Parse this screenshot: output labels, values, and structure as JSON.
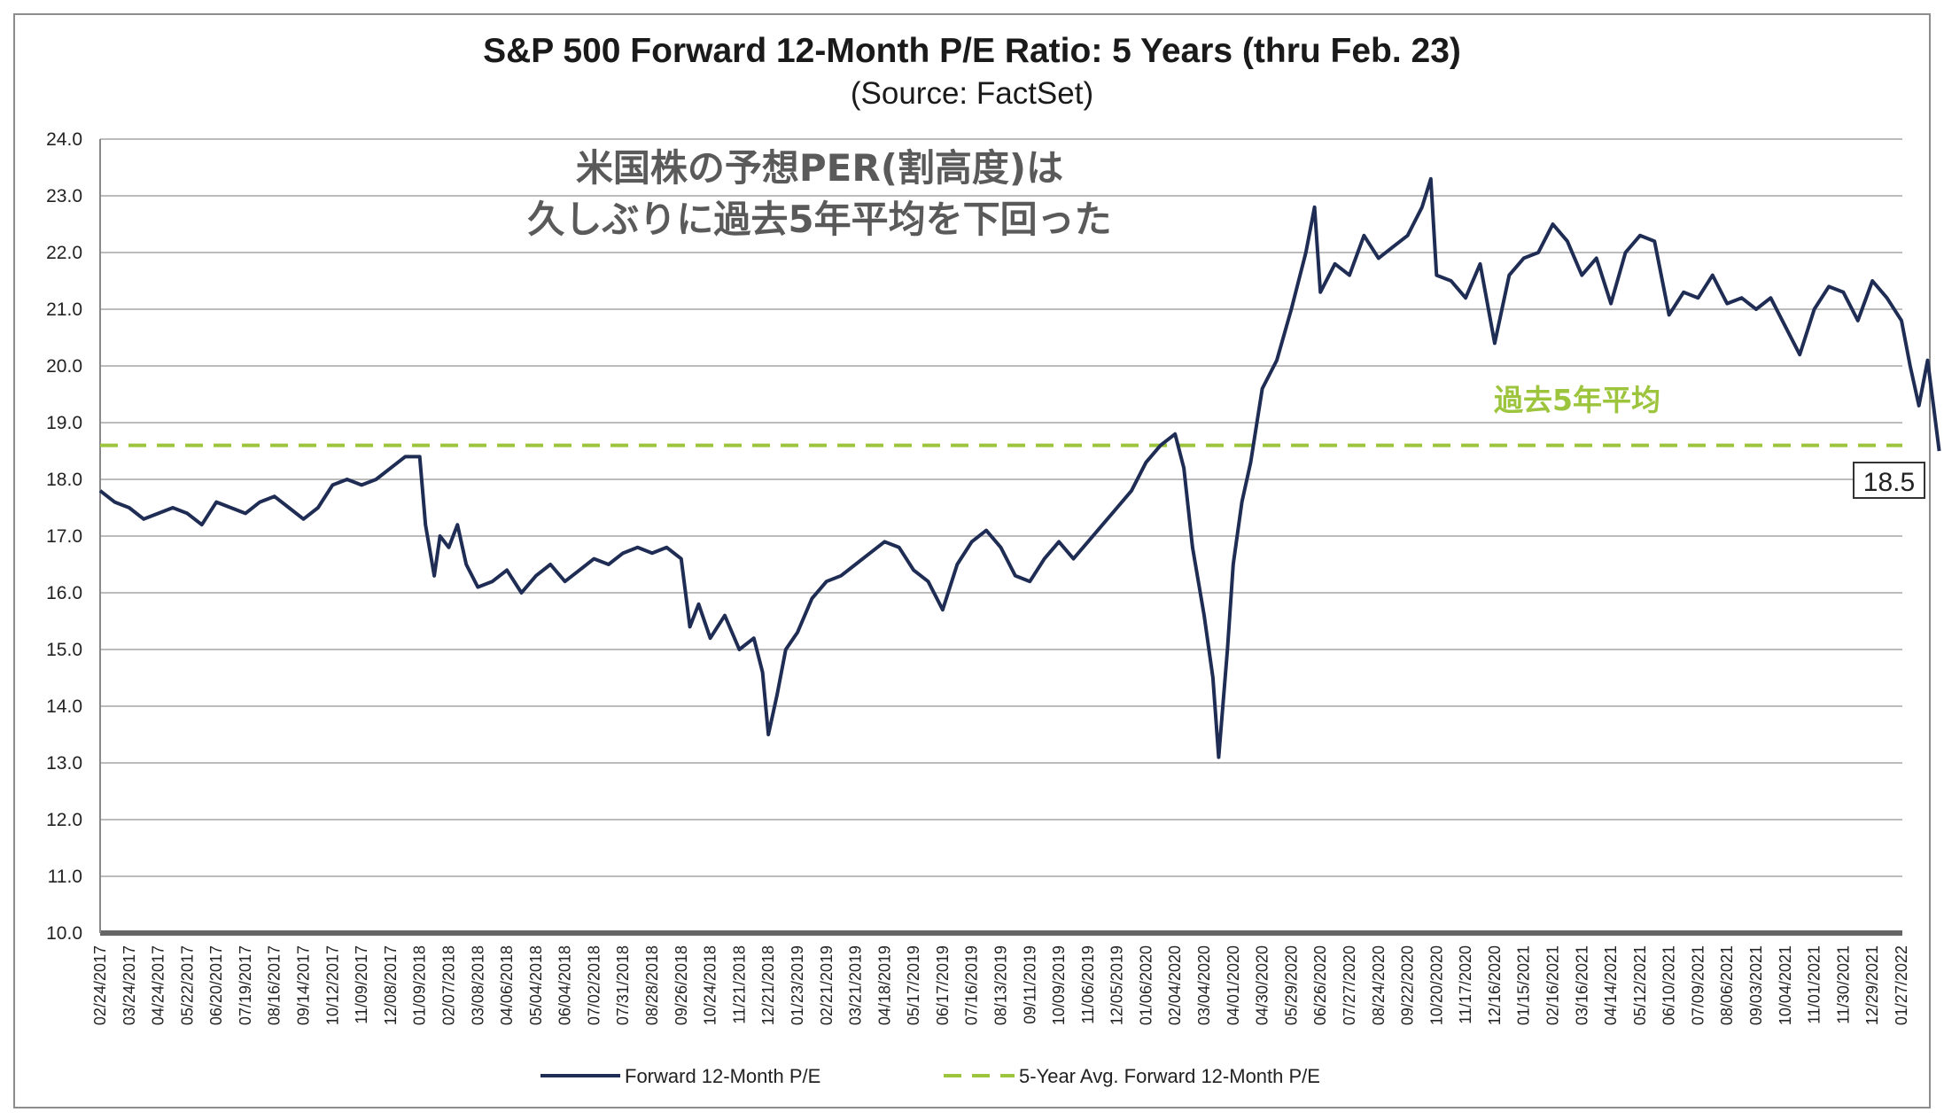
{
  "chart_data": {
    "type": "line",
    "title": "S&P 500 Forward 12-Month P/E Ratio: 5 Years (thru Feb. 23)",
    "subtitle": "(Source: FactSet)",
    "ylim": [
      10.0,
      24.0
    ],
    "yticks": [
      "24.0",
      "23.0",
      "22.0",
      "21.0",
      "20.0",
      "19.0",
      "18.0",
      "17.0",
      "16.0",
      "15.0",
      "14.0",
      "13.0",
      "12.0",
      "11.0",
      "10.0"
    ],
    "xticks": [
      "02/24/2017",
      "03/24/2017",
      "04/24/2017",
      "05/22/2017",
      "06/20/2017",
      "07/19/2017",
      "08/16/2017",
      "09/14/2017",
      "10/12/2017",
      "11/09/2017",
      "12/08/2017",
      "01/09/2018",
      "02/07/2018",
      "03/08/2018",
      "04/06/2018",
      "05/04/2018",
      "06/04/2018",
      "07/02/2018",
      "07/31/2018",
      "08/28/2018",
      "09/26/2018",
      "10/24/2018",
      "11/21/2018",
      "12/21/2018",
      "01/23/2019",
      "02/21/2019",
      "03/21/2019",
      "04/18/2019",
      "05/17/2019",
      "06/17/2019",
      "07/16/2019",
      "08/13/2019",
      "09/11/2019",
      "10/09/2019",
      "11/06/2019",
      "12/05/2019",
      "01/06/2020",
      "02/04/2020",
      "03/04/2020",
      "04/01/2020",
      "04/30/2020",
      "05/29/2020",
      "06/26/2020",
      "07/27/2020",
      "08/24/2020",
      "09/22/2020",
      "10/20/2020",
      "11/17/2020",
      "12/16/2020",
      "01/15/2021",
      "02/16/2021",
      "03/16/2021",
      "04/14/2021",
      "05/12/2021",
      "06/10/2021",
      "07/09/2021",
      "08/06/2021",
      "09/03/2021",
      "10/04/2021",
      "11/01/2021",
      "11/30/2021",
      "12/29/2021",
      "01/27/2022"
    ],
    "grid": true,
    "legend_position": "bottom-center",
    "series": [
      {
        "name": "Forward 12-Month P/E",
        "color": "#1f2d55",
        "points": [
          [
            0,
            17.8
          ],
          [
            0.5,
            17.6
          ],
          [
            1,
            17.5
          ],
          [
            1.5,
            17.3
          ],
          [
            2,
            17.4
          ],
          [
            2.5,
            17.5
          ],
          [
            3,
            17.4
          ],
          [
            3.5,
            17.2
          ],
          [
            4,
            17.6
          ],
          [
            4.5,
            17.5
          ],
          [
            5,
            17.4
          ],
          [
            5.5,
            17.6
          ],
          [
            6,
            17.7
          ],
          [
            6.5,
            17.5
          ],
          [
            7,
            17.3
          ],
          [
            7.5,
            17.5
          ],
          [
            8,
            17.9
          ],
          [
            8.5,
            18.0
          ],
          [
            9,
            17.9
          ],
          [
            9.5,
            18.0
          ],
          [
            10,
            18.2
          ],
          [
            10.5,
            18.4
          ],
          [
            11,
            18.4
          ],
          [
            11.2,
            17.2
          ],
          [
            11.5,
            16.3
          ],
          [
            11.7,
            17.0
          ],
          [
            12,
            16.8
          ],
          [
            12.3,
            17.2
          ],
          [
            12.6,
            16.5
          ],
          [
            13,
            16.1
          ],
          [
            13.5,
            16.2
          ],
          [
            14,
            16.4
          ],
          [
            14.5,
            16.0
          ],
          [
            15,
            16.3
          ],
          [
            15.5,
            16.5
          ],
          [
            16,
            16.2
          ],
          [
            16.5,
            16.4
          ],
          [
            17,
            16.6
          ],
          [
            17.5,
            16.5
          ],
          [
            18,
            16.7
          ],
          [
            18.5,
            16.8
          ],
          [
            19,
            16.7
          ],
          [
            19.5,
            16.8
          ],
          [
            20,
            16.6
          ],
          [
            20.3,
            15.4
          ],
          [
            20.6,
            15.8
          ],
          [
            21,
            15.2
          ],
          [
            21.5,
            15.6
          ],
          [
            22,
            15.0
          ],
          [
            22.5,
            15.2
          ],
          [
            22.8,
            14.6
          ],
          [
            23,
            13.5
          ],
          [
            23.3,
            14.2
          ],
          [
            23.6,
            15.0
          ],
          [
            24,
            15.3
          ],
          [
            24.5,
            15.9
          ],
          [
            25,
            16.2
          ],
          [
            25.5,
            16.3
          ],
          [
            26,
            16.5
          ],
          [
            26.5,
            16.7
          ],
          [
            27,
            16.9
          ],
          [
            27.5,
            16.8
          ],
          [
            28,
            16.4
          ],
          [
            28.5,
            16.2
          ],
          [
            29,
            15.7
          ],
          [
            29.5,
            16.5
          ],
          [
            30,
            16.9
          ],
          [
            30.5,
            17.1
          ],
          [
            31,
            16.8
          ],
          [
            31.5,
            16.3
          ],
          [
            32,
            16.2
          ],
          [
            32.5,
            16.6
          ],
          [
            33,
            16.9
          ],
          [
            33.5,
            16.6
          ],
          [
            34,
            16.9
          ],
          [
            34.5,
            17.2
          ],
          [
            35,
            17.5
          ],
          [
            35.5,
            17.8
          ],
          [
            36,
            18.3
          ],
          [
            36.5,
            18.6
          ],
          [
            37,
            18.8
          ],
          [
            37.3,
            18.2
          ],
          [
            37.6,
            16.8
          ],
          [
            38,
            15.6
          ],
          [
            38.3,
            14.5
          ],
          [
            38.5,
            13.1
          ],
          [
            38.8,
            15.0
          ],
          [
            39,
            16.5
          ],
          [
            39.3,
            17.6
          ],
          [
            39.6,
            18.3
          ],
          [
            40,
            19.6
          ],
          [
            40.5,
            20.1
          ],
          [
            41,
            21.0
          ],
          [
            41.5,
            22.0
          ],
          [
            41.8,
            22.8
          ],
          [
            42,
            21.3
          ],
          [
            42.5,
            21.8
          ],
          [
            43,
            21.6
          ],
          [
            43.5,
            22.3
          ],
          [
            44,
            21.9
          ],
          [
            44.5,
            22.1
          ],
          [
            45,
            22.3
          ],
          [
            45.5,
            22.8
          ],
          [
            45.8,
            23.3
          ],
          [
            46,
            21.6
          ],
          [
            46.5,
            21.5
          ],
          [
            47,
            21.2
          ],
          [
            47.5,
            21.8
          ],
          [
            48,
            20.4
          ],
          [
            48.5,
            21.6
          ],
          [
            49,
            21.9
          ],
          [
            49.5,
            22.0
          ],
          [
            50,
            22.5
          ],
          [
            50.5,
            22.2
          ],
          [
            51,
            21.6
          ],
          [
            51.5,
            21.9
          ],
          [
            52,
            21.1
          ],
          [
            52.5,
            22.0
          ],
          [
            53,
            22.3
          ],
          [
            53.5,
            22.2
          ],
          [
            54,
            20.9
          ],
          [
            54.5,
            21.3
          ],
          [
            55,
            21.2
          ],
          [
            55.5,
            21.6
          ],
          [
            56,
            21.1
          ],
          [
            56.5,
            21.2
          ],
          [
            57,
            21.0
          ],
          [
            57.5,
            21.2
          ],
          [
            58,
            20.7
          ],
          [
            58.5,
            20.2
          ],
          [
            59,
            21.0
          ],
          [
            59.5,
            21.4
          ],
          [
            60,
            21.3
          ],
          [
            60.5,
            20.8
          ],
          [
            61,
            21.5
          ],
          [
            61.5,
            21.2
          ],
          [
            62,
            20.8
          ],
          [
            62.3,
            20.0
          ],
          [
            62.6,
            19.3
          ],
          [
            62.9,
            20.1
          ],
          [
            63.1,
            19.3
          ],
          [
            63.3,
            18.5
          ]
        ]
      },
      {
        "name": "5-Year Avg. Forward 12-Month P/E",
        "color": "#9cc43c",
        "value": 18.6
      }
    ],
    "annotations": {
      "main_line1": "米国株の予想PER(割高度)は",
      "main_line2": "久しぶりに過去5年平均を下回った",
      "avg_label": "過去5年平均",
      "last_value_label": "18.5"
    }
  }
}
